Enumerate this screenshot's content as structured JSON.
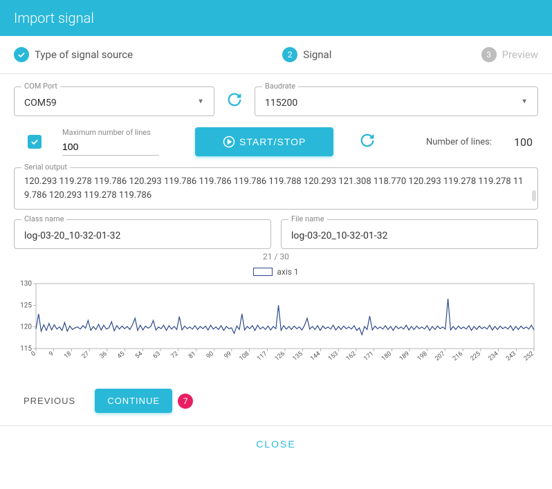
{
  "header": {
    "title": "Import signal"
  },
  "steps": [
    {
      "label": "Type of signal source",
      "state": "done"
    },
    {
      "label": "Signal",
      "state": "active",
      "num": "2"
    },
    {
      "label": "Preview",
      "state": "inactive",
      "num": "3"
    }
  ],
  "com_port": {
    "label": "COM Port",
    "value": "COM59"
  },
  "baudrate": {
    "label": "Baudrate",
    "value": "115200"
  },
  "max_lines": {
    "label": "Maximum number of lines",
    "value": "100",
    "checked": true
  },
  "start_stop": {
    "label": "START/STOP"
  },
  "num_lines": {
    "label": "Number of lines:",
    "value": "100"
  },
  "serial": {
    "label": "Serial output",
    "text": "120.293 119.278 119.786 120.293 119.786 119.786 119.786 119.788 120.293 121.308 118.770 120.293 119.278 119.278 119.786 120.293 119.278 119.786"
  },
  "class_name": {
    "label": "Class name",
    "value": "log-03-20_10-32-01-32"
  },
  "file_name": {
    "label": "File name",
    "value": "log-03-20_10-32-01-32"
  },
  "counter": "21 / 30",
  "chart": {
    "type": "line",
    "legend": "axis 1",
    "line_color": "#2d4a8a",
    "background_color": "#ffffff",
    "axis_color": "#888888",
    "ylim": [
      115,
      130
    ],
    "yticks": [
      115,
      120,
      125,
      130
    ],
    "xlim": [
      0,
      252
    ],
    "xticks": [
      0,
      9,
      18,
      27,
      36,
      45,
      54,
      63,
      72,
      81,
      90,
      99,
      108,
      117,
      126,
      135,
      144,
      153,
      162,
      171,
      180,
      189,
      198,
      207,
      216,
      225,
      234,
      243,
      252
    ],
    "values": [
      119.5,
      123,
      119,
      120.5,
      119.2,
      120.8,
      119.3,
      120.5,
      119.5,
      120,
      119.2,
      121,
      119,
      120.2,
      119.4,
      119.8,
      120,
      119.5,
      120.3,
      119.7,
      121.5,
      119.2,
      120.1,
      119.4,
      120.6,
      119.3,
      120.4,
      119.5,
      119.8,
      121.2,
      119.1,
      120.3,
      119.5,
      120.2,
      119.6,
      120.1,
      119.4,
      120.5,
      122,
      119.2,
      120.4,
      119.3,
      120.2,
      119.7,
      120.1,
      121.5,
      119.3,
      120,
      119.6,
      120.4,
      119.2,
      120.3,
      119.5,
      120.1,
      119.4,
      122.4,
      119.3,
      120.2,
      119.6,
      120,
      119.5,
      120.3,
      119.4,
      120.1,
      119.6,
      120.2,
      119.3,
      120.4,
      119.5,
      120,
      119.4,
      120.3,
      119.2,
      120.1,
      119.6,
      119.8,
      118.5,
      120.2,
      119.4,
      123,
      119.3,
      120.1,
      119.6,
      120.3,
      119.2,
      120.4,
      119.5,
      120,
      119.4,
      120.2,
      119.3,
      120.1,
      119.6,
      125,
      119.2,
      120.3,
      119.5,
      120.1,
      119.4,
      120.2,
      119.6,
      120,
      119.3,
      120.4,
      122,
      119.5,
      120.1,
      119.4,
      120.3,
      119.2,
      120.2,
      119.6,
      120,
      119.5,
      120.4,
      119.3,
      120.1,
      119.4,
      120.2,
      119.6,
      120,
      119.5,
      120.3,
      119.2,
      119.8,
      118.2,
      120.1,
      119.4,
      122.5,
      119.3,
      120.2,
      119.6,
      120,
      119.5,
      120.3,
      119.4,
      120.1,
      119.2,
      120.2,
      119.6,
      120,
      119.5,
      120.4,
      119.3,
      120.1,
      119.4,
      120.2,
      119.6,
      120,
      119.5,
      120.3,
      119.2,
      120.1,
      119.4,
      120.2,
      119.6,
      120,
      119.5,
      126.5,
      119.3,
      120.1,
      119.4,
      120.2,
      119.6,
      120,
      119.5,
      120.3,
      119.2,
      120.1,
      119.4,
      120.2,
      119.6,
      120,
      119.5,
      120.4,
      119.3,
      120.1,
      119.4,
      120.2,
      119.6,
      120,
      119.5,
      120.3,
      119.2,
      120.1,
      119.4,
      120.2,
      119.6,
      120,
      119.5,
      120.4,
      119.3
    ]
  },
  "actions": {
    "previous": "PREVIOUS",
    "continue": "CONTINUE",
    "badge": "7",
    "close": "CLOSE"
  },
  "colors": {
    "accent": "#29b8d8",
    "badge": "#e91e63"
  }
}
